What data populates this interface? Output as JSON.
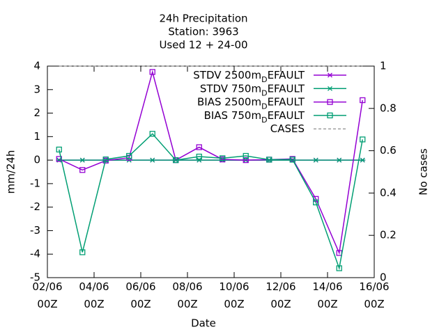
{
  "chart_data": {
    "type": "line",
    "title": [
      "24h Precipitation",
      "Station:     3963",
      "Used  12 + 24-00"
    ],
    "xlabel": "Date",
    "ylabel": "mm/24h",
    "y2label": "No cases",
    "x": [
      0.5,
      1.5,
      2.5,
      3.5,
      4.5,
      5.5,
      6.5,
      7.5,
      8.5,
      9.5,
      10.5,
      11.5,
      12.5,
      13.5
    ],
    "xlim": [
      0,
      14
    ],
    "xticks": [
      {
        "value": 0,
        "label": "02/06\n00Z"
      },
      {
        "value": 2,
        "label": "04/06\n00Z"
      },
      {
        "value": 4,
        "label": "06/06\n00Z"
      },
      {
        "value": 6,
        "label": "08/06\n00Z"
      },
      {
        "value": 8,
        "label": "10/06\n00Z"
      },
      {
        "value": 10,
        "label": "12/06\n00Z"
      },
      {
        "value": 12,
        "label": "14/06\n00Z"
      },
      {
        "value": 14,
        "label": "16/06\n00Z"
      }
    ],
    "ylim": [
      -5,
      4
    ],
    "yticks": [
      -5,
      -4,
      -3,
      -2,
      -1,
      0,
      1,
      2,
      3,
      4
    ],
    "y2lim": [
      0,
      1
    ],
    "y2ticks": [
      0,
      0.2,
      0.4,
      0.6,
      0.8,
      1
    ],
    "legend": "top-right",
    "series": [
      {
        "name": "STDV 2500m_DEFAULT",
        "color": "#9400d3",
        "marker": "star",
        "values": [
          0,
          0,
          0,
          0,
          0,
          0,
          0,
          0,
          0,
          0,
          0,
          0,
          0,
          0
        ]
      },
      {
        "name": "STDV 750m_DEFAULT",
        "color": "#009e73",
        "marker": "star",
        "values": [
          0,
          0,
          0,
          0,
          0,
          0,
          0,
          0,
          0,
          0,
          0,
          0,
          0,
          0
        ]
      },
      {
        "name": "BIAS 2500m_DEFAULT",
        "color": "#9400d3",
        "marker": "square",
        "values": [
          0.05,
          -0.42,
          -0.02,
          0.1,
          3.75,
          0,
          0.55,
          0.03,
          0,
          0.02,
          0.05,
          -1.65,
          -3.95,
          2.55
        ]
      },
      {
        "name": "BIAS 750m_DEFAULT",
        "color": "#009e73",
        "marker": "square",
        "values": [
          0.45,
          -3.92,
          0.03,
          0.18,
          1.12,
          0,
          0.15,
          0.08,
          0.18,
          0.02,
          0.02,
          -1.8,
          -4.6,
          0.88
        ]
      },
      {
        "name": "CASES",
        "color": "#a0a0a0",
        "marker": "none",
        "dash": true,
        "axis": "y2",
        "values": [
          1,
          1,
          1,
          1,
          1,
          1,
          1,
          1,
          1,
          1,
          1,
          1,
          1,
          1
        ]
      }
    ]
  }
}
